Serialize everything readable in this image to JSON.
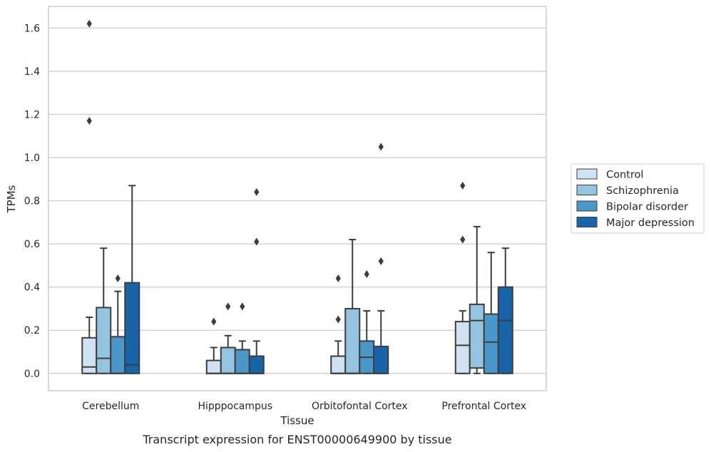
{
  "caption": "Transcript expression for ENST00000649900 by tissue",
  "chart_data": {
    "type": "box",
    "xlabel": "Tissue",
    "ylabel": "TPMs",
    "ylim": [
      -0.08,
      1.7
    ],
    "yticks": [
      "0.0",
      "0.2",
      "0.4",
      "0.6",
      "0.8",
      "1.0",
      "1.2",
      "1.4",
      "1.6"
    ],
    "grid": "horizontal",
    "legend_position": "right",
    "categories": [
      "Cerebellum",
      "Hipppocampus",
      "Orbitofontal Cortex",
      "Prefrontal Cortex"
    ],
    "series": [
      {
        "name": "Control",
        "color": "#d0e1f2",
        "boxes": [
          {
            "whislo": 0.0,
            "q1": 0.0,
            "med": 0.03,
            "q3": 0.165,
            "whishi": 0.26,
            "fliers": [
              1.17,
              1.62
            ]
          },
          {
            "whislo": 0.0,
            "q1": 0.0,
            "med": 0.0,
            "q3": 0.06,
            "whishi": 0.12,
            "fliers": [
              0.24
            ]
          },
          {
            "whislo": 0.0,
            "q1": 0.0,
            "med": 0.0,
            "q3": 0.08,
            "whishi": 0.15,
            "fliers": [
              0.25,
              0.44
            ]
          },
          {
            "whislo": 0.0,
            "q1": 0.0,
            "med": 0.13,
            "q3": 0.24,
            "whishi": 0.29,
            "fliers": [
              0.62,
              0.87
            ]
          }
        ]
      },
      {
        "name": "Schizophrenia",
        "color": "#94c4df",
        "boxes": [
          {
            "whislo": 0.0,
            "q1": 0.0,
            "med": 0.07,
            "q3": 0.305,
            "whishi": 0.58,
            "fliers": []
          },
          {
            "whislo": 0.0,
            "q1": 0.0,
            "med": 0.0,
            "q3": 0.12,
            "whishi": 0.175,
            "fliers": [
              0.31
            ]
          },
          {
            "whislo": 0.0,
            "q1": 0.0,
            "med": 0.0,
            "q3": 0.3,
            "whishi": 0.62,
            "fliers": []
          },
          {
            "whislo": 0.0,
            "q1": 0.025,
            "med": 0.245,
            "q3": 0.32,
            "whishi": 0.68,
            "fliers": []
          }
        ]
      },
      {
        "name": "Bipolar disorder",
        "color": "#4a98c9",
        "boxes": [
          {
            "whislo": 0.0,
            "q1": 0.0,
            "med": 0.0,
            "q3": 0.17,
            "whishi": 0.38,
            "fliers": [
              0.44
            ]
          },
          {
            "whislo": 0.0,
            "q1": 0.0,
            "med": 0.0,
            "q3": 0.11,
            "whishi": 0.15,
            "fliers": [
              0.31
            ]
          },
          {
            "whislo": 0.0,
            "q1": 0.0,
            "med": 0.075,
            "q3": 0.15,
            "whishi": 0.29,
            "fliers": [
              0.46
            ]
          },
          {
            "whislo": 0.0,
            "q1": 0.0,
            "med": 0.145,
            "q3": 0.275,
            "whishi": 0.56,
            "fliers": []
          }
        ]
      },
      {
        "name": "Major depression",
        "color": "#1764ab",
        "boxes": [
          {
            "whislo": 0.0,
            "q1": 0.0,
            "med": 0.04,
            "q3": 0.42,
            "whishi": 0.87,
            "fliers": []
          },
          {
            "whislo": 0.0,
            "q1": 0.0,
            "med": 0.0,
            "q3": 0.08,
            "whishi": 0.15,
            "fliers": [
              0.61,
              0.84
            ]
          },
          {
            "whislo": 0.0,
            "q1": 0.0,
            "med": 0.0,
            "q3": 0.125,
            "whishi": 0.29,
            "fliers": [
              0.52,
              1.05
            ]
          },
          {
            "whislo": 0.0,
            "q1": 0.0,
            "med": 0.245,
            "q3": 0.4,
            "whishi": 0.58,
            "fliers": []
          }
        ]
      }
    ]
  }
}
